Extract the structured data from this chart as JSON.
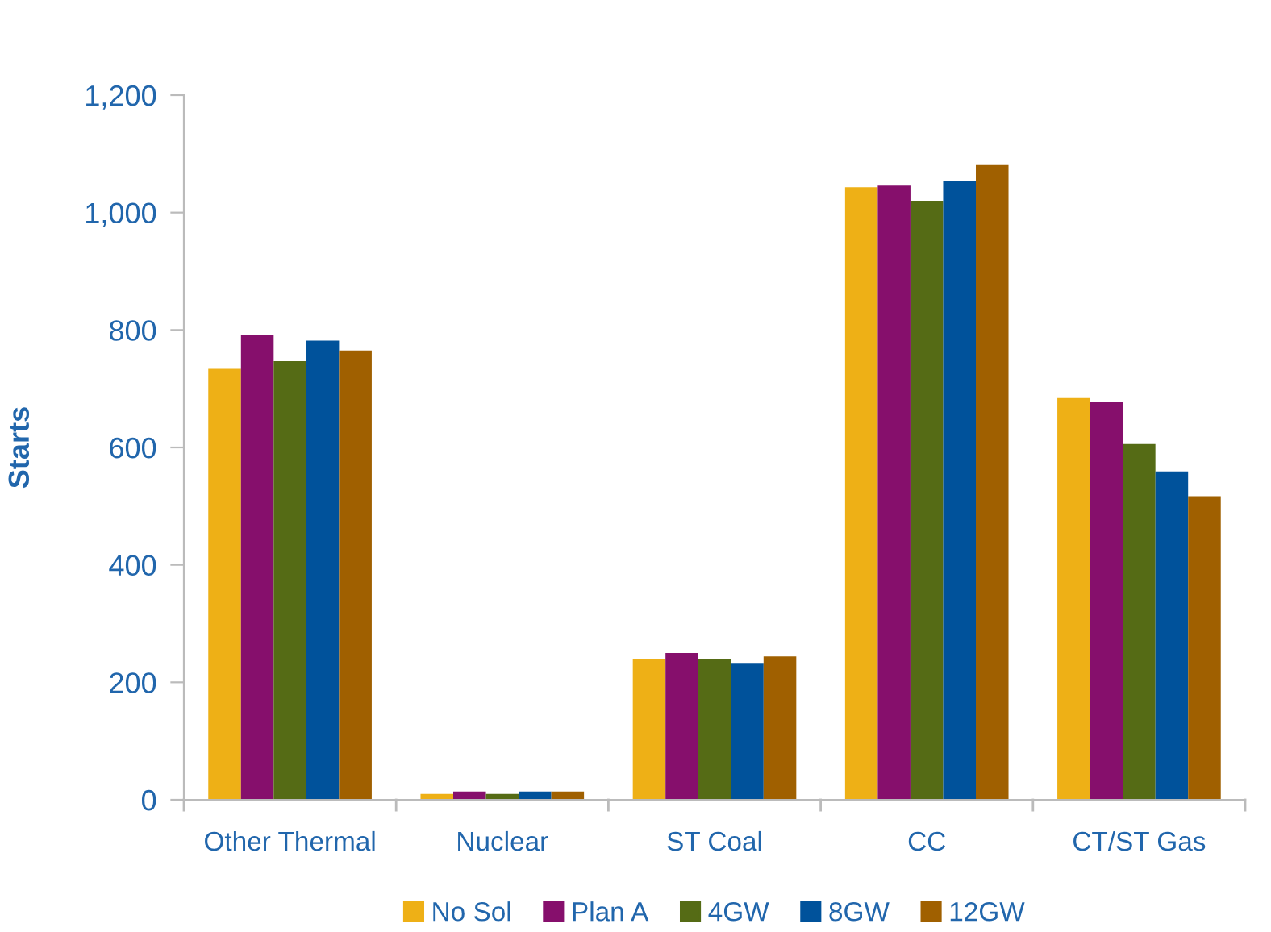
{
  "chart_data": {
    "type": "bar",
    "ylabel": "Starts",
    "categories": [
      "Other Thermal",
      "Nuclear",
      "ST Coal",
      "CC",
      "CT/ST Gas"
    ],
    "series": [
      {
        "name": "No Sol",
        "color": "#eeb016",
        "values": [
          734,
          10,
          239,
          1043,
          684
        ]
      },
      {
        "name": "Plan A",
        "color": "#860f6c",
        "values": [
          791,
          14,
          250,
          1046,
          677
        ]
      },
      {
        "name": "4GW",
        "color": "#556b15",
        "values": [
          747,
          10,
          239,
          1020,
          606
        ]
      },
      {
        "name": "8GW",
        "color": "#00529b",
        "values": [
          782,
          14,
          233,
          1054,
          559
        ]
      },
      {
        "name": "12GW",
        "color": "#a06000",
        "values": [
          765,
          14,
          244,
          1081,
          517
        ]
      }
    ],
    "ylim": [
      0,
      1200
    ],
    "yticks": [
      0,
      {
        "value": 200,
        "label": "200"
      },
      {
        "value": 400,
        "label": "400"
      },
      {
        "value": 600,
        "label": "600"
      },
      {
        "value": 800,
        "label": "800"
      },
      {
        "value": 1000,
        "label": "1,000"
      },
      {
        "value": 1200,
        "label": "1,200"
      }
    ],
    "grid": false,
    "legend": "bottom"
  }
}
